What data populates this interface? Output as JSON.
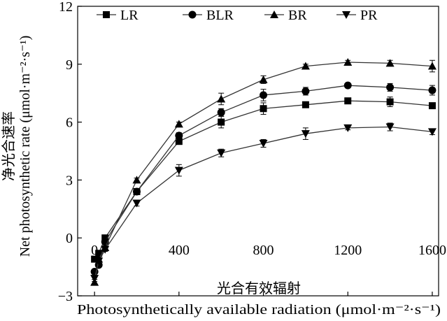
{
  "chart_data": {
    "type": "line",
    "x": [
      0,
      20,
      50,
      200,
      400,
      600,
      800,
      1000,
      1200,
      1400,
      1600
    ],
    "xlim": [
      -80,
      1630
    ],
    "ylim": [
      -3,
      12
    ],
    "x_ticks": [
      0,
      400,
      800,
      1200,
      1600
    ],
    "x_tick_labels": [
      "0",
      "400",
      "800",
      "1200",
      "1600"
    ],
    "y_ticks": [
      -3,
      0,
      3,
      6,
      9,
      12
    ],
    "y_tick_labels": [
      "−3",
      "0",
      "3",
      "6",
      "9",
      "12"
    ],
    "xlabel_cn": "光合有效辐射",
    "xlabel_en": "Photosynthetically available radiation (μmol·m⁻²·s⁻¹)",
    "ylabel_cn": "净光合速率",
    "ylabel_en": "Net photosynthetic rate (μmol·m⁻²·s⁻¹)",
    "grid": false,
    "legend_position": "top",
    "series": [
      {
        "name": "LR",
        "marker": "square",
        "values": [
          -1.1,
          -0.8,
          0.0,
          2.4,
          5.0,
          6.0,
          6.7,
          6.9,
          7.1,
          7.05,
          6.85
        ],
        "errors": [
          0.1,
          0.1,
          0.1,
          0.15,
          0.15,
          0.3,
          0.3,
          0.15,
          0.15,
          0.25,
          0.15
        ]
      },
      {
        "name": "BLR",
        "marker": "circle",
        "values": [
          -1.75,
          -1.4,
          -0.2,
          2.4,
          5.3,
          6.5,
          7.4,
          7.6,
          7.9,
          7.8,
          7.65
        ],
        "errors": [
          0.1,
          0.1,
          0.1,
          0.15,
          0.15,
          0.2,
          0.3,
          0.2,
          0.1,
          0.2,
          0.25
        ]
      },
      {
        "name": "BR",
        "marker": "triangle-up",
        "values": [
          -2.3,
          -1.1,
          -0.5,
          3.0,
          5.9,
          7.2,
          8.2,
          8.9,
          9.1,
          9.05,
          8.9
        ],
        "errors": [
          0.15,
          0.1,
          0.1,
          0.1,
          0.1,
          0.3,
          0.2,
          0.1,
          0.1,
          0.15,
          0.3
        ]
      },
      {
        "name": "PR",
        "marker": "triangle-down",
        "values": [
          -2.1,
          -1.2,
          -0.6,
          1.8,
          3.5,
          4.4,
          4.9,
          5.4,
          5.7,
          5.75,
          5.5
        ],
        "errors": [
          0.15,
          0.1,
          0.1,
          0.15,
          0.3,
          0.2,
          0.2,
          0.3,
          0.1,
          0.2,
          0.15
        ]
      }
    ]
  }
}
